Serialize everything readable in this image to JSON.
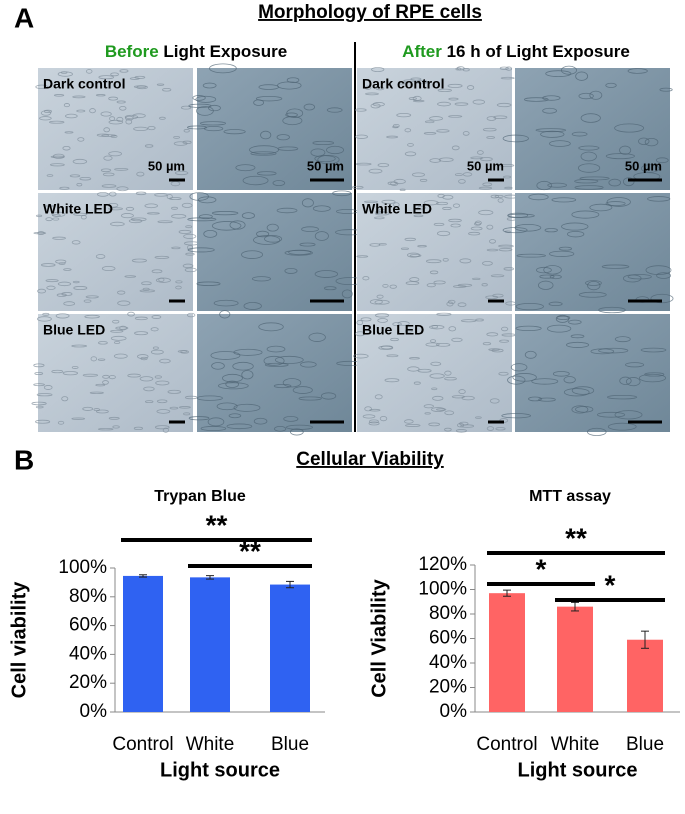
{
  "panel_a": {
    "label": "A",
    "title": "Morphology of RPE cells",
    "columns": [
      {
        "highlight": "Before",
        "text": "Light Exposure"
      },
      {
        "highlight": "After",
        "text": "16 h of Light Exposure"
      }
    ],
    "rows": [
      "Dark control",
      "White LED",
      "Blue LED"
    ],
    "scale_bar": "50 µm"
  },
  "panel_b": {
    "label": "B",
    "title": "Cellular Viability"
  },
  "chart_data": [
    {
      "type": "bar",
      "title": "Trypan Blue",
      "x_label": "Light source",
      "y_label": "Cell viability",
      "categories": [
        "Control",
        "White",
        "Blue"
      ],
      "series": [
        {
          "color": "#2f62f2",
          "values": [
            94.5,
            93.5,
            88.5
          ],
          "errors": [
            0.8,
            1.2,
            2.2
          ]
        }
      ],
      "ylim": [
        0,
        100
      ],
      "yticks": [
        {
          "value": 0,
          "label": "0%"
        },
        {
          "value": 20,
          "label": "20%"
        },
        {
          "value": 40,
          "label": "40%"
        },
        {
          "value": 60,
          "label": "60%"
        },
        {
          "value": 80,
          "label": "80%"
        },
        {
          "value": 100,
          "label": "100%"
        }
      ],
      "significance": [
        {
          "label": "**",
          "pair": [
            0,
            2
          ]
        },
        {
          "label": "**",
          "pair": [
            1,
            2
          ]
        }
      ]
    },
    {
      "type": "bar",
      "title": "MTT assay",
      "x_label": "Light source",
      "y_label": "Cell Viability",
      "categories": [
        "Control",
        "White",
        "Blue"
      ],
      "series": [
        {
          "color": "#ff6464",
          "values": [
            97,
            86,
            59
          ],
          "errors": [
            2.5,
            3.5,
            7
          ]
        }
      ],
      "ylim": [
        0,
        120
      ],
      "yticks": [
        {
          "value": 0,
          "label": "0%"
        },
        {
          "value": 20,
          "label": "20%"
        },
        {
          "value": 40,
          "label": "40%"
        },
        {
          "value": 60,
          "label": "60%"
        },
        {
          "value": 80,
          "label": "80%"
        },
        {
          "value": 100,
          "label": "100%"
        },
        {
          "value": 120,
          "label": "120%"
        }
      ],
      "significance": [
        {
          "label": "**",
          "pair": [
            0,
            2
          ]
        },
        {
          "label": "*",
          "pair": [
            0,
            1
          ]
        },
        {
          "label": "*",
          "pair": [
            1,
            2
          ]
        }
      ]
    }
  ]
}
